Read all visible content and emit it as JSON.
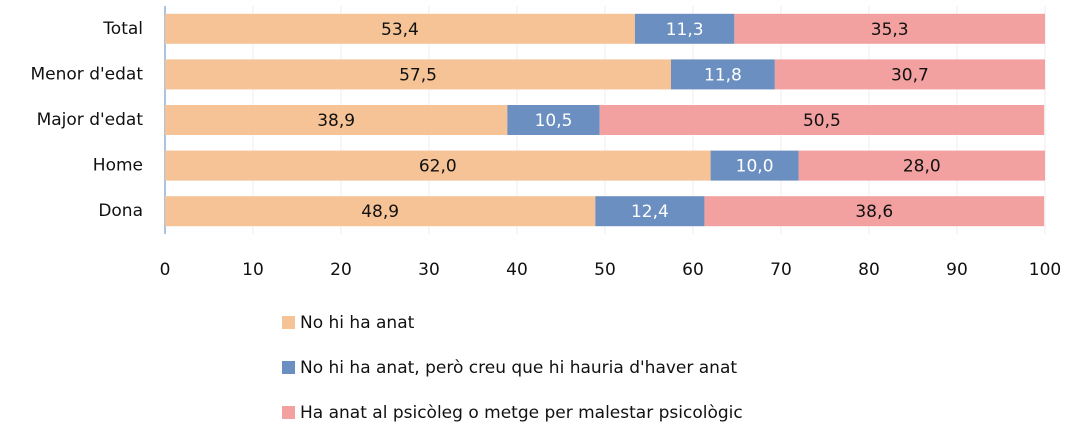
{
  "chart_data": {
    "type": "stacked-bar-horizontal",
    "categories": [
      "Total",
      "Menor d'edat",
      "Major d'edat",
      "Home",
      "Dona"
    ],
    "series": [
      {
        "name": "No hi ha anat",
        "color": "#f5c396",
        "values": [
          53.4,
          57.5,
          38.9,
          62.0,
          48.9
        ],
        "value_labels": [
          "53,4",
          "57,5",
          "38,9",
          "62,0",
          "48,9"
        ]
      },
      {
        "name": "No hi ha anat, però creu que hi hauria d'haver anat",
        "color": "#6a8fc0",
        "values": [
          11.3,
          11.8,
          10.5,
          10.0,
          12.4
        ],
        "value_labels": [
          "11,3",
          "11,8",
          "10,5",
          "10,0",
          "12,4"
        ]
      },
      {
        "name": "Ha anat al psicòleg o metge per malestar psicològic",
        "color": "#f2a0a0",
        "values": [
          35.3,
          30.7,
          50.5,
          28.0,
          38.6
        ],
        "value_labels": [
          "35,3",
          "30,7",
          "50,5",
          "28,0",
          "38,6"
        ]
      }
    ],
    "xlim": [
      0,
      100
    ],
    "xticks": [
      0,
      10,
      20,
      30,
      40,
      50,
      60,
      70,
      80,
      90,
      100
    ],
    "grid": true
  }
}
